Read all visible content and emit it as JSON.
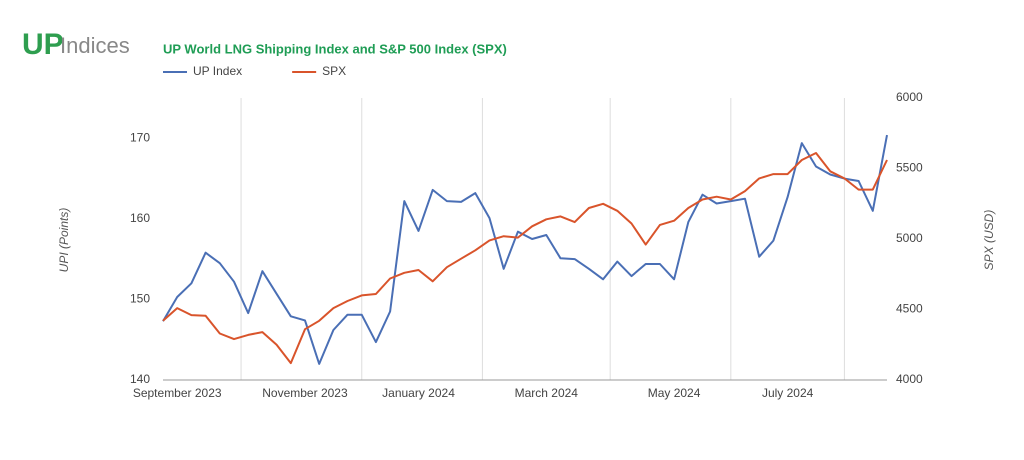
{
  "logo": {
    "mark": "UP",
    "text": "Indices"
  },
  "chart_data": {
    "type": "line",
    "title": "UP World LNG Shipping Index and S&P 500 Index (SPX)",
    "y_label": "UPI (Points)",
    "y2_label": "SPX (USD)",
    "categories": [
      null,
      "September 2023",
      null,
      null,
      null,
      null,
      null,
      null,
      null,
      null,
      "November 2023",
      null,
      null,
      null,
      null,
      null,
      null,
      null,
      "January 2024",
      null,
      null,
      null,
      null,
      null,
      null,
      null,
      null,
      "March 2024",
      null,
      null,
      null,
      null,
      null,
      null,
      null,
      null,
      "May 2024",
      null,
      null,
      null,
      null,
      null,
      null,
      null,
      "July 2024",
      null,
      null,
      null,
      null,
      null,
      null,
      null
    ],
    "series": [
      {
        "name": "UP Index",
        "color": "#4a6fb5",
        "axis": "y",
        "values": [
          147.3,
          150.3,
          152,
          155.8,
          154.5,
          152.2,
          148.3,
          153.5,
          150.7,
          147.9,
          147.4,
          142,
          146.2,
          148.1,
          148.1,
          144.7,
          148.5,
          162.2,
          158.5,
          163.6,
          162.2,
          162.1,
          163.2,
          160.1,
          153.8,
          158.4,
          157.5,
          158,
          155.1,
          155,
          153.8,
          152.5,
          154.7,
          152.9,
          154.4,
          154.4,
          152.5,
          159.6,
          163,
          161.9,
          162.2,
          162.5,
          155.3,
          157.3,
          162.7,
          169.4,
          166.5,
          165.5,
          165,
          164.7,
          161,
          170.4
        ]
      },
      {
        "name": "SPX",
        "color": "#d9542b",
        "axis": "y2",
        "values": [
          4420,
          4510,
          4460,
          4455,
          4330,
          4290,
          4320,
          4340,
          4250,
          4120,
          4360,
          4420,
          4510,
          4560,
          4600,
          4610,
          4720,
          4760,
          4780,
          4700,
          4800,
          4860,
          4920,
          4990,
          5020,
          5010,
          5090,
          5140,
          5160,
          5120,
          5220,
          5250,
          5200,
          5110,
          4960,
          5100,
          5130,
          5220,
          5280,
          5300,
          5280,
          5340,
          5430,
          5460,
          5460,
          5560,
          5610,
          5480,
          5430,
          5350,
          5350,
          5560
        ]
      }
    ],
    "ylim": [
      140,
      175
    ],
    "yticks": [
      140,
      150,
      160,
      170
    ],
    "y2lim": [
      4000,
      6000
    ],
    "y2ticks": [
      4000,
      4500,
      5000,
      5500,
      6000
    ],
    "xgrid": true,
    "legend": "top"
  }
}
